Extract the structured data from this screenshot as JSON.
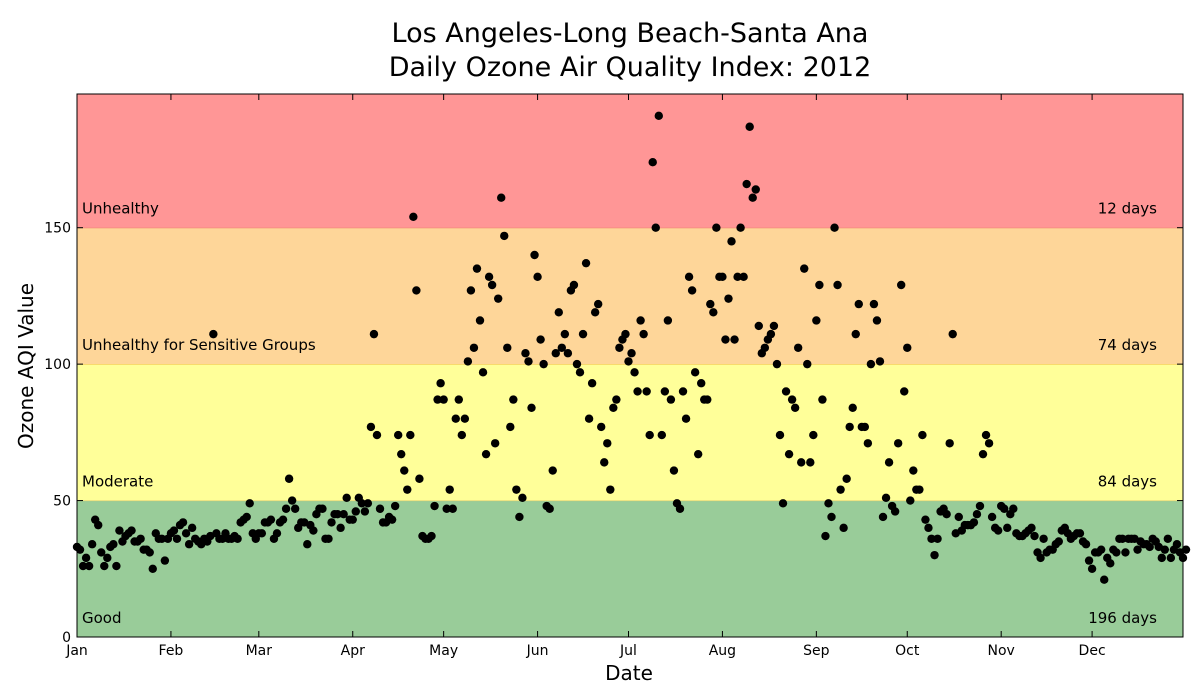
{
  "chart_data": {
    "type": "scatter",
    "title_line1": "Los Angeles-Long Beach-Santa Ana",
    "title_line2": "Daily Ozone Air Quality Index: 2012",
    "xlabel": "Date",
    "ylabel": "Ozone AQI Value",
    "x_ticks": [
      "Jan",
      "Feb",
      "Mar",
      "Apr",
      "May",
      "Jun",
      "Jul",
      "Aug",
      "Sep",
      "Oct",
      "Nov",
      "Dec"
    ],
    "x_range": [
      "2012-01-01",
      "2012-12-31"
    ],
    "y_ticks": [
      "0",
      "50",
      "100",
      "150"
    ],
    "ylim": [
      0,
      199
    ],
    "grid": false,
    "point_color": "#000000",
    "bands": [
      {
        "name": "Good",
        "from": 0,
        "to": 50,
        "color": "#99cc99",
        "days": "196 days"
      },
      {
        "name": "Moderate",
        "from": 50,
        "to": 100,
        "color": "#ffff99",
        "days": "84 days"
      },
      {
        "name": "Unhealthy for Sensitive Groups",
        "from": 100,
        "to": 150,
        "color": "#fed699",
        "days": "74 days"
      },
      {
        "name": "Unhealthy",
        "from": 150,
        "to": 199,
        "color": "#ff9696",
        "days": "12 days"
      }
    ],
    "values": [
      33,
      32,
      26,
      29,
      26,
      34,
      43,
      41,
      31,
      26,
      29,
      33,
      34,
      26,
      39,
      35,
      37,
      38,
      39,
      35,
      35,
      36,
      32,
      32,
      31,
      25,
      38,
      36,
      36,
      28,
      36,
      38,
      39,
      36,
      41,
      42,
      38,
      34,
      40,
      36,
      35,
      34,
      36,
      35,
      37,
      111,
      38,
      36,
      36,
      38,
      36,
      36,
      37,
      36,
      42,
      43,
      44,
      49,
      38,
      36,
      38,
      38,
      42,
      42,
      43,
      36,
      38,
      42,
      43,
      47,
      58,
      50,
      47,
      40,
      42,
      42,
      34,
      41,
      39,
      45,
      47,
      47,
      36,
      36,
      42,
      45,
      45,
      40,
      45,
      51,
      43,
      43,
      46,
      51,
      49,
      46,
      49,
      77,
      111,
      74,
      47,
      42,
      42,
      44,
      43,
      48,
      74,
      67,
      61,
      54,
      74,
      154,
      127,
      58,
      37,
      36,
      36,
      37,
      48,
      87,
      93,
      87,
      47,
      54,
      47,
      80,
      87,
      74,
      80,
      101,
      127,
      106,
      135,
      116,
      97,
      67,
      132,
      129,
      71,
      124,
      161,
      147,
      106,
      77,
      87,
      54,
      44,
      51,
      104,
      101,
      84,
      140,
      132,
      109,
      100,
      48,
      47,
      61,
      104,
      119,
      106,
      111,
      104,
      127,
      129,
      100,
      97,
      111,
      137,
      80,
      93,
      119,
      122,
      77,
      64,
      71,
      54,
      84,
      87,
      106,
      109,
      111,
      101,
      104,
      97,
      90,
      116,
      111,
      90,
      74,
      174,
      150,
      191,
      74,
      90,
      116,
      87,
      61,
      49,
      47,
      90,
      80,
      132,
      127,
      97,
      67,
      93,
      87,
      87,
      122,
      119,
      150,
      132,
      132,
      109,
      124,
      145,
      109,
      132,
      150,
      132,
      166,
      187,
      161,
      164,
      114,
      104,
      106,
      109,
      111,
      114,
      100,
      74,
      49,
      90,
      67,
      87,
      84,
      106,
      64,
      135,
      100,
      64,
      74,
      116,
      129,
      87,
      37,
      49,
      44,
      150,
      129,
      54,
      40,
      58,
      77,
      84,
      111,
      122,
      77,
      77,
      71,
      100,
      122,
      116,
      101,
      44,
      51,
      64,
      48,
      46,
      71,
      129,
      90,
      106,
      50,
      61,
      54,
      54,
      74,
      43,
      40,
      36,
      30,
      36,
      46,
      47,
      45,
      71,
      111,
      38,
      44,
      39,
      41,
      41,
      41,
      42,
      45,
      48,
      67,
      74,
      71,
      44,
      40,
      39,
      48,
      47,
      40,
      45,
      47,
      38,
      37,
      37,
      38,
      39,
      40,
      37,
      31,
      29,
      36,
      31,
      32,
      32,
      34,
      35,
      39,
      40,
      38,
      36,
      37,
      38,
      38,
      35,
      34,
      28,
      25,
      31,
      31,
      32,
      21,
      29,
      27,
      32,
      31,
      36,
      36,
      31,
      36,
      36,
      36,
      32,
      35,
      34,
      34,
      33,
      36,
      35,
      33,
      29,
      32,
      36,
      29,
      32,
      34,
      31,
      29,
      32
    ]
  }
}
